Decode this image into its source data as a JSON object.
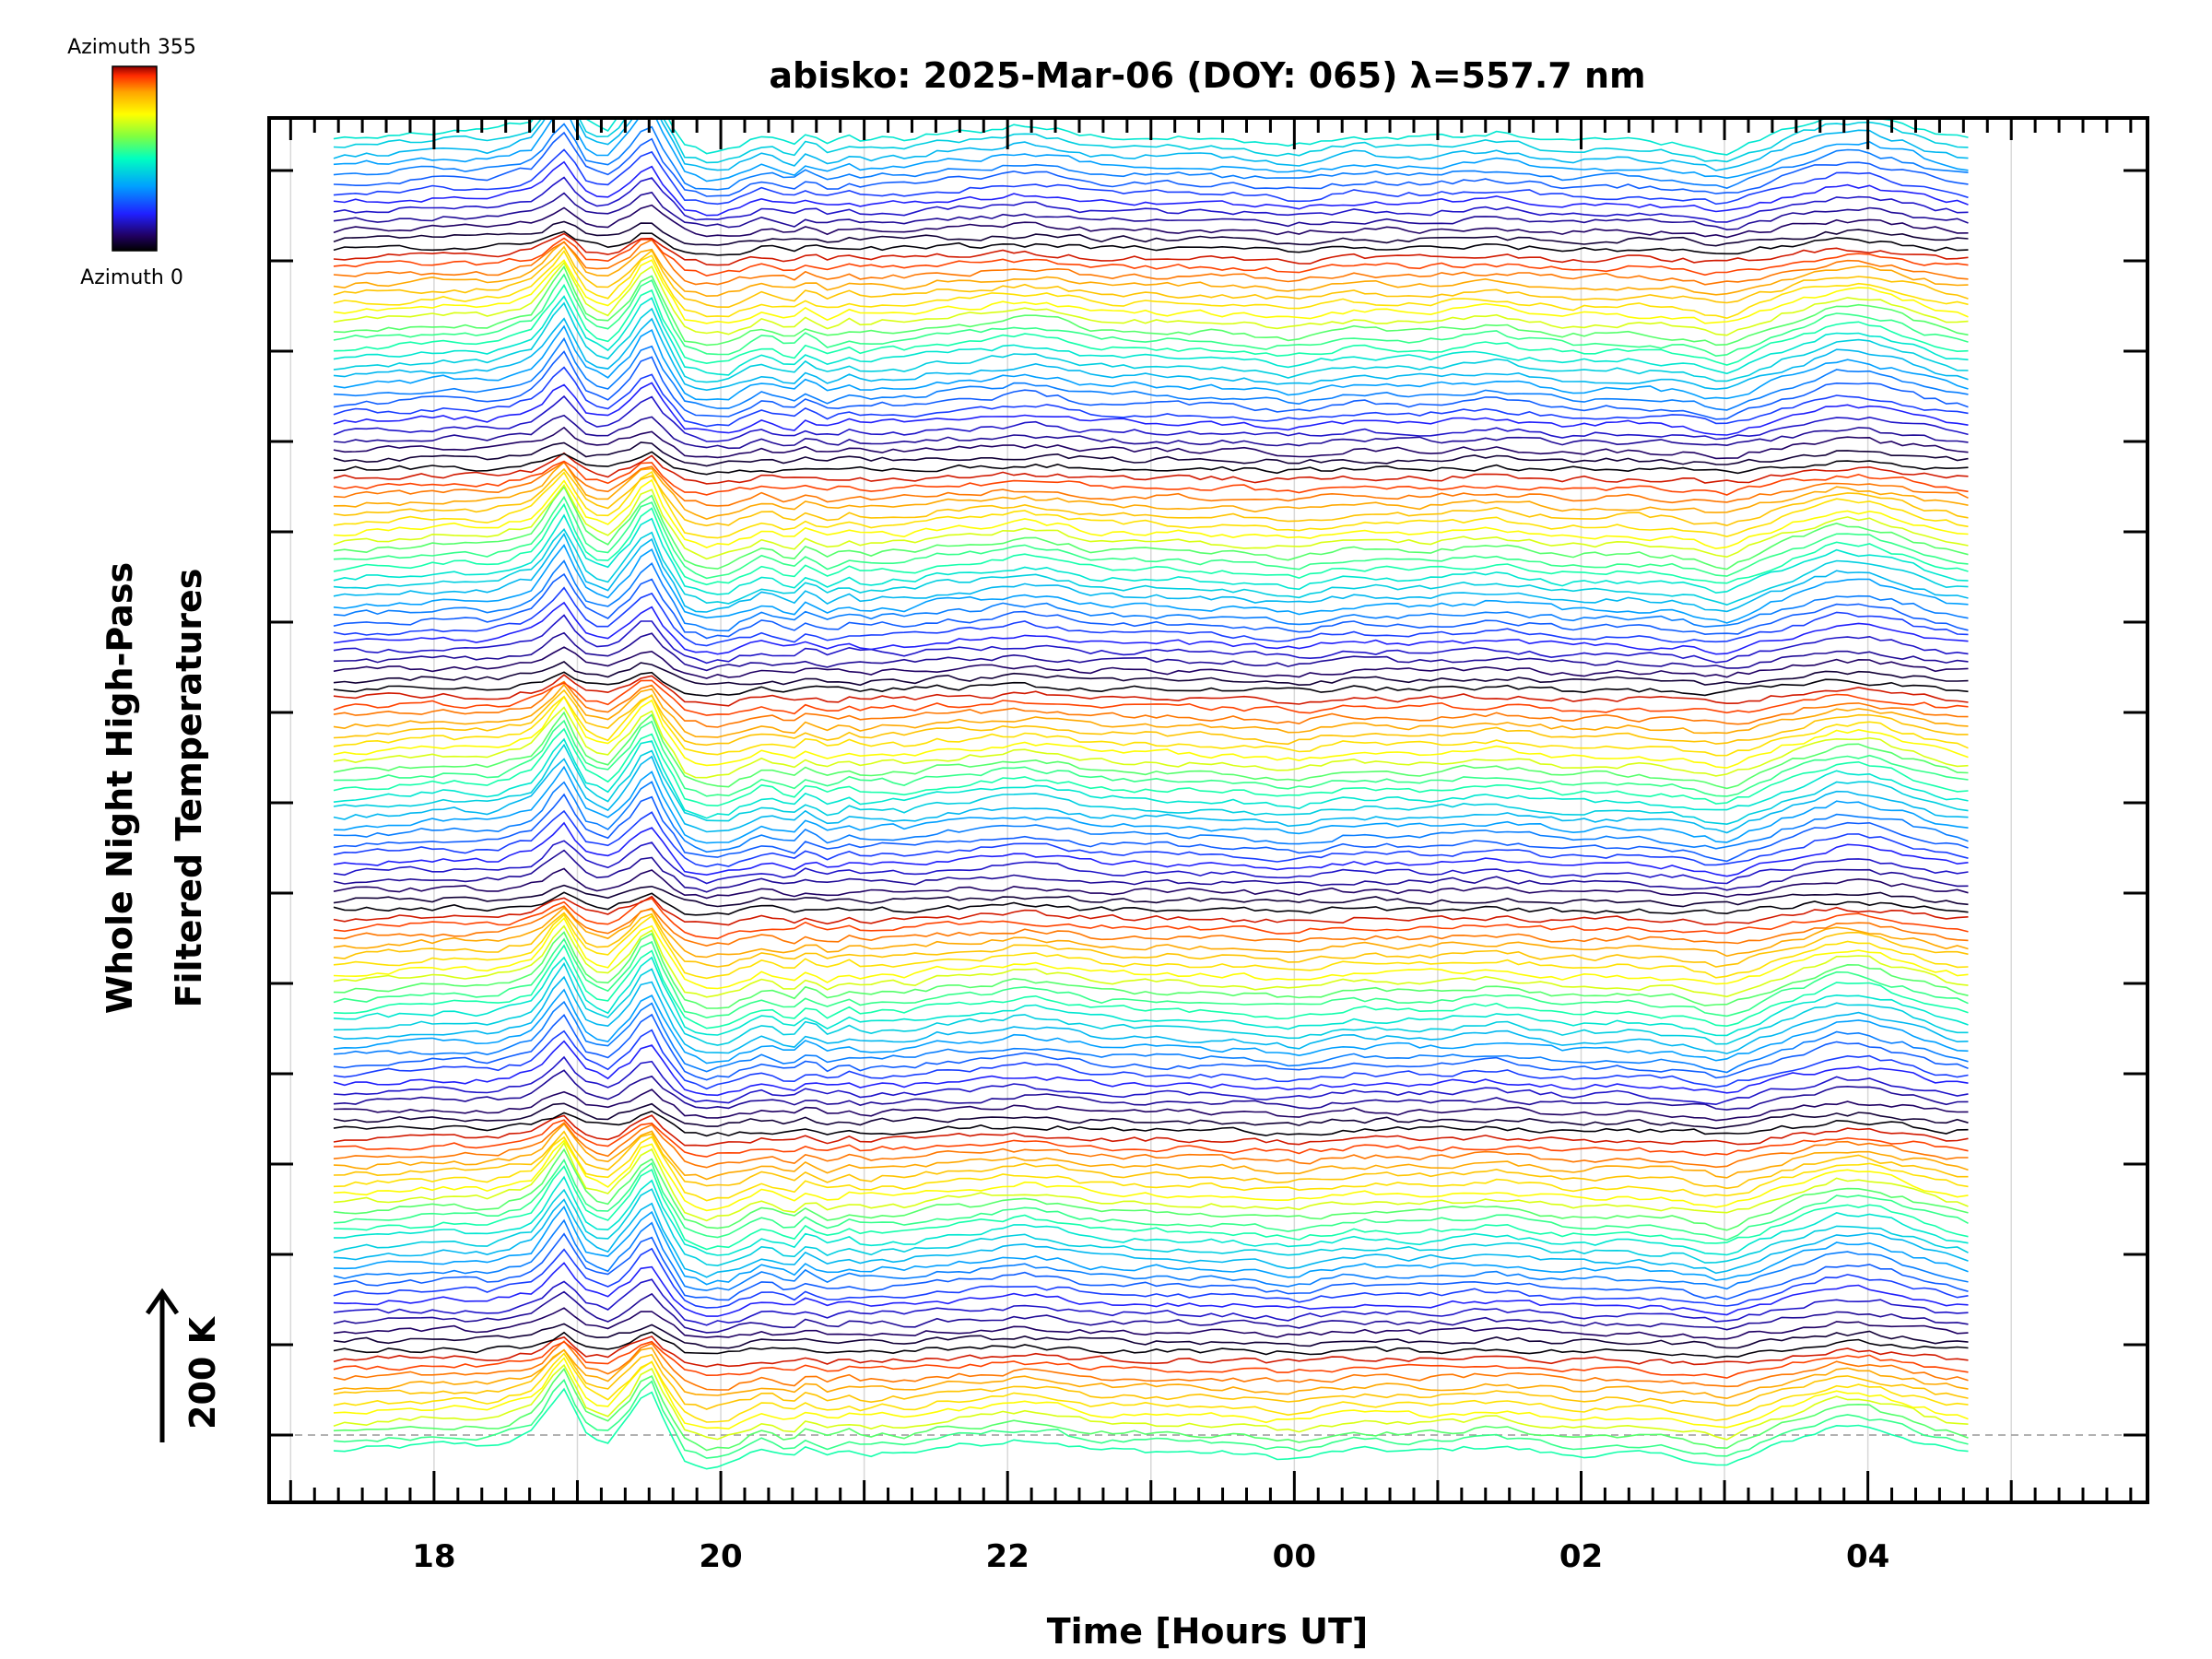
{
  "chart_data": {
    "type": "line",
    "title": "abisko: 2025-Mar-06 (DOY: 065) λ=557.7 nm",
    "xlabel": "Time [Hours UT]",
    "ylabel_line1": "Whole Night High-Pass",
    "ylabel_line2": "Filtered Temperatures",
    "scale_label": "200 K",
    "colorbar": {
      "top_label": "Azimuth 355",
      "bottom_label": "Azimuth 0",
      "colormap": [
        "#8b0000",
        "#ff2a00",
        "#ffa500",
        "#ffff00",
        "#80ff40",
        "#00ffc0",
        "#00a0ff",
        "#2020ff",
        "#200050",
        "#000000"
      ]
    },
    "x_tick_labels": [
      "18",
      "20",
      "22",
      "00",
      "02",
      "04"
    ],
    "x_tick_hours": [
      18,
      20,
      22,
      24,
      26,
      28
    ],
    "x_range_hours": [
      16.85,
      29.95
    ],
    "grid": true,
    "series_count": 144,
    "series_time_range_hours": [
      17.3,
      28.7
    ],
    "groups": 6,
    "group_profile": {
      "description": "mean high-pass temperature shape (K) reused for each azimuth trace with offsets",
      "t": [
        17.3,
        17.5,
        17.8,
        18.1,
        18.4,
        18.7,
        18.9,
        19.05,
        19.2,
        19.35,
        19.5,
        19.6,
        19.75,
        19.9,
        20.05,
        20.3,
        20.5,
        20.6,
        20.75,
        20.9,
        21.0,
        21.15,
        21.3,
        21.5,
        21.8,
        22.1,
        22.35,
        22.6,
        22.9,
        23.2,
        23.6,
        24.0,
        24.4,
        24.9,
        25.4,
        25.9,
        26.3,
        26.7,
        27.0,
        27.4,
        27.8,
        28.0,
        28.25,
        28.5,
        28.7
      ],
      "v": [
        0,
        6,
        12,
        20,
        15,
        52,
        168,
        52,
        20,
        80,
        170,
        80,
        -20,
        -40,
        -35,
        10,
        -20,
        15,
        -15,
        5,
        -10,
        0,
        -5,
        12,
        20,
        35,
        25,
        5,
        2,
        0,
        -5,
        -20,
        5,
        0,
        15,
        -10,
        -5,
        -15,
        -40,
        20,
        70,
        65,
        40,
        10,
        -5
      ]
    }
  }
}
